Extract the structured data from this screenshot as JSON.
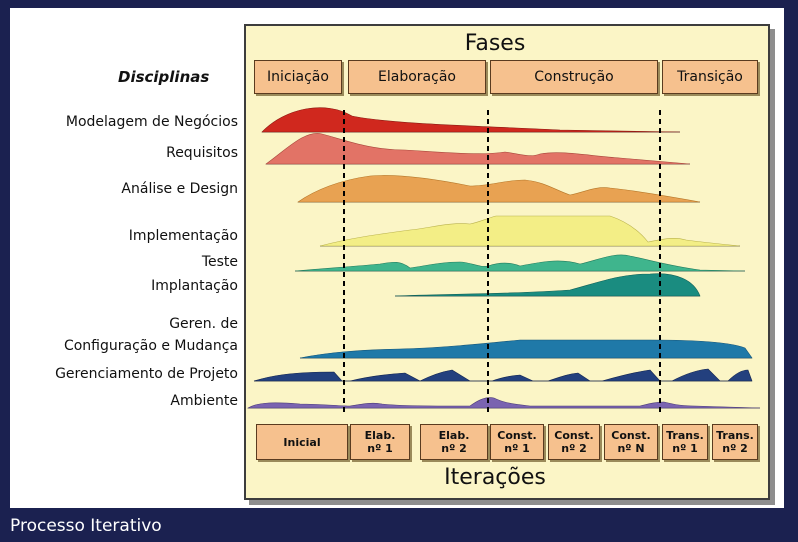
{
  "fases_title": "Fases",
  "iteracoes_title": "Iterações",
  "disciplinas_title": "Disciplinas",
  "phases": [
    "Iniciação",
    "Elaboração",
    "Construção",
    "Transição"
  ],
  "disciplines": [
    "Modelagem de Negócios",
    "Requisitos",
    "Análise e Design",
    "Implementação",
    "Teste",
    "Implantação",
    "Geren. de",
    "Configuração e Mudança",
    "Gerenciamento de Projeto",
    "Ambiente"
  ],
  "iterations": [
    {
      "line1": "Inicial",
      "line2": ""
    },
    {
      "line1": "Elab.",
      "line2": "nº 1"
    },
    {
      "line1": "Elab.",
      "line2": "nº 2"
    },
    {
      "line1": "Const.",
      "line2": "nº 1"
    },
    {
      "line1": "Const.",
      "line2": "nº 2"
    },
    {
      "line1": "Const.",
      "line2": "nº N"
    },
    {
      "line1": "Trans.",
      "line2": "nº 1"
    },
    {
      "line1": "Trans.",
      "line2": "nº 2"
    }
  ],
  "caption": "Processo Iterativo",
  "colors": {
    "background": "#1b2150",
    "panel": "#fbf5c6",
    "box": "#f6c18e",
    "modelagem": "#d0281e",
    "requisitos": "#e27366",
    "analise": "#e8a252",
    "implementacao": "#f3ee86",
    "teste": "#3fb58d",
    "implantacao": "#1a8c80",
    "configuracao": "#1f79a8",
    "gerenciamento": "#23407e",
    "ambiente": "#7a63b0"
  }
}
